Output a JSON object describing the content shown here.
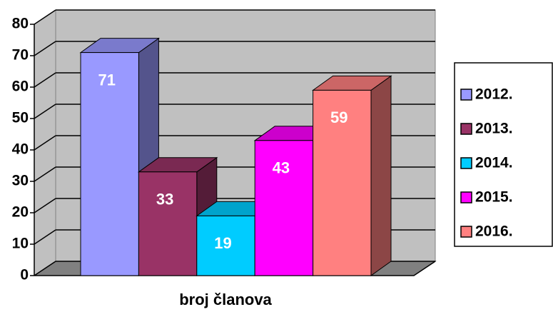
{
  "chart_data": {
    "type": "bar",
    "categories": [
      "broj članova"
    ],
    "series": [
      {
        "name": "2012.",
        "color": "#9999ff",
        "values": [
          71
        ]
      },
      {
        "name": "2013.",
        "color": "#993366",
        "values": [
          33
        ]
      },
      {
        "name": "2014.",
        "color": "#00ccff",
        "values": [
          19
        ]
      },
      {
        "name": "2015.",
        "color": "#ff00ff",
        "values": [
          43
        ]
      },
      {
        "name": "2016.",
        "color": "#ff8080",
        "values": [
          59
        ]
      }
    ],
    "ylim": [
      0,
      80
    ],
    "yticks": [
      0,
      10,
      20,
      30,
      40,
      50,
      60,
      70,
      80
    ],
    "grid": true,
    "legend": "right"
  }
}
